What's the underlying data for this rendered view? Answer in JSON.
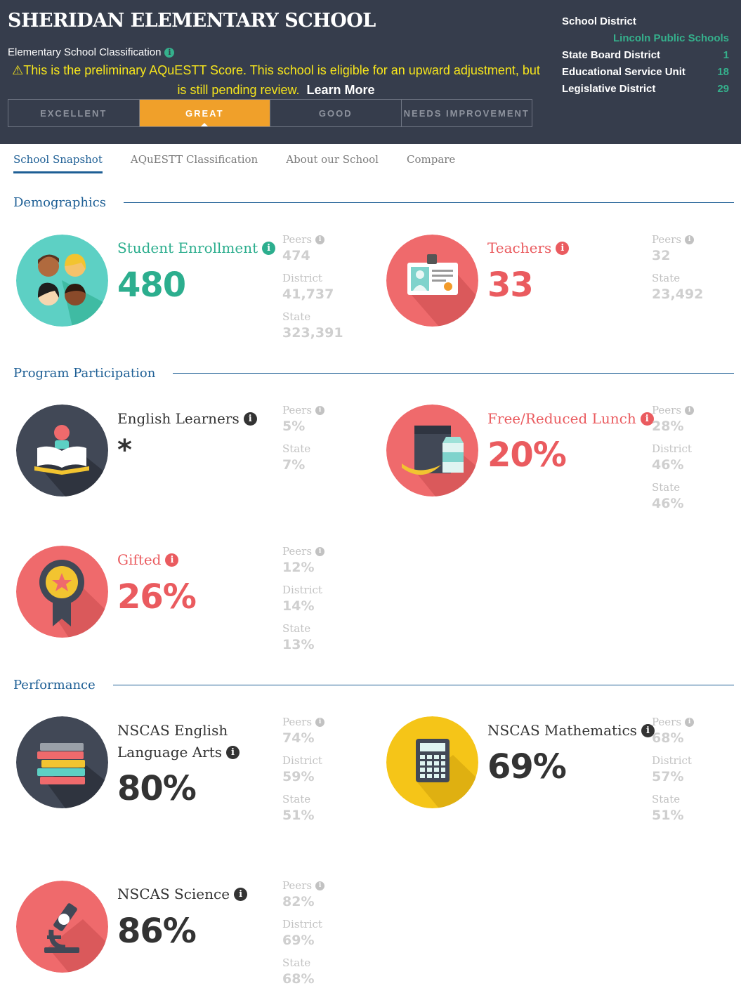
{
  "header": {
    "school_name": "SHERIDAN ELEMENTARY SCHOOL",
    "classification_label": "Elementary School Classification",
    "warning_text": "This is the preliminary AQuESTT Score. This school is eligible for an upward adjustment, but is still pending review.",
    "learn_more": "Learn More",
    "ratings": [
      "EXCELLENT",
      "GREAT",
      "GOOD",
      "NEEDS IMPROVEMENT"
    ],
    "active_rating": "GREAT",
    "district_info": {
      "school_district_label": "School District",
      "school_district_value": "Lincoln Public Schools",
      "state_board_label": "State Board District",
      "state_board_value": "1",
      "esu_label": "Educational Service Unit",
      "esu_value": "18",
      "legislative_label": "Legislative District",
      "legislative_value": "29"
    }
  },
  "tabs": [
    "School Snapshot",
    "AQuESTT Classification",
    "About our School",
    "Compare"
  ],
  "sections": {
    "demographics": "Demographics",
    "program": "Program Participation",
    "performance": "Performance"
  },
  "metrics": {
    "enrollment": {
      "label": "Student Enrollment",
      "value": "480",
      "peers": "474",
      "district": "41,737",
      "state": "323,391"
    },
    "teachers": {
      "label": "Teachers",
      "value": "33",
      "peers": "32",
      "state": "23,492"
    },
    "english_learners": {
      "label": "English Learners",
      "value": "*",
      "peers": "5%",
      "state": "7%"
    },
    "lunch": {
      "label": "Free/Reduced Lunch",
      "value": "20%",
      "peers": "28%",
      "district": "46%",
      "state": "46%"
    },
    "gifted": {
      "label": "Gifted",
      "value": "26%",
      "peers": "12%",
      "district": "14%",
      "state": "13%"
    },
    "ela": {
      "label_line1": "NSCAS English",
      "label_line2": "Language Arts",
      "value": "80%",
      "peers": "74%",
      "district": "59%",
      "state": "51%"
    },
    "math": {
      "label": "NSCAS Mathematics",
      "value": "69%",
      "peers": "68%",
      "district": "57%",
      "state": "51%"
    },
    "science": {
      "label": "NSCAS Science",
      "value": "86%",
      "peers": "82%",
      "district": "69%",
      "state": "68%"
    }
  },
  "compare_labels": {
    "peers": "Peers",
    "district": "District",
    "state": "State"
  },
  "colors": {
    "header_bg": "#363d4c",
    "accent_teal": "#2cae8e",
    "accent_coral": "#ea5b5f",
    "rating_active": "#f0a02a",
    "link_blue": "#1e5f95",
    "warning_yellow": "#f6e51c"
  }
}
